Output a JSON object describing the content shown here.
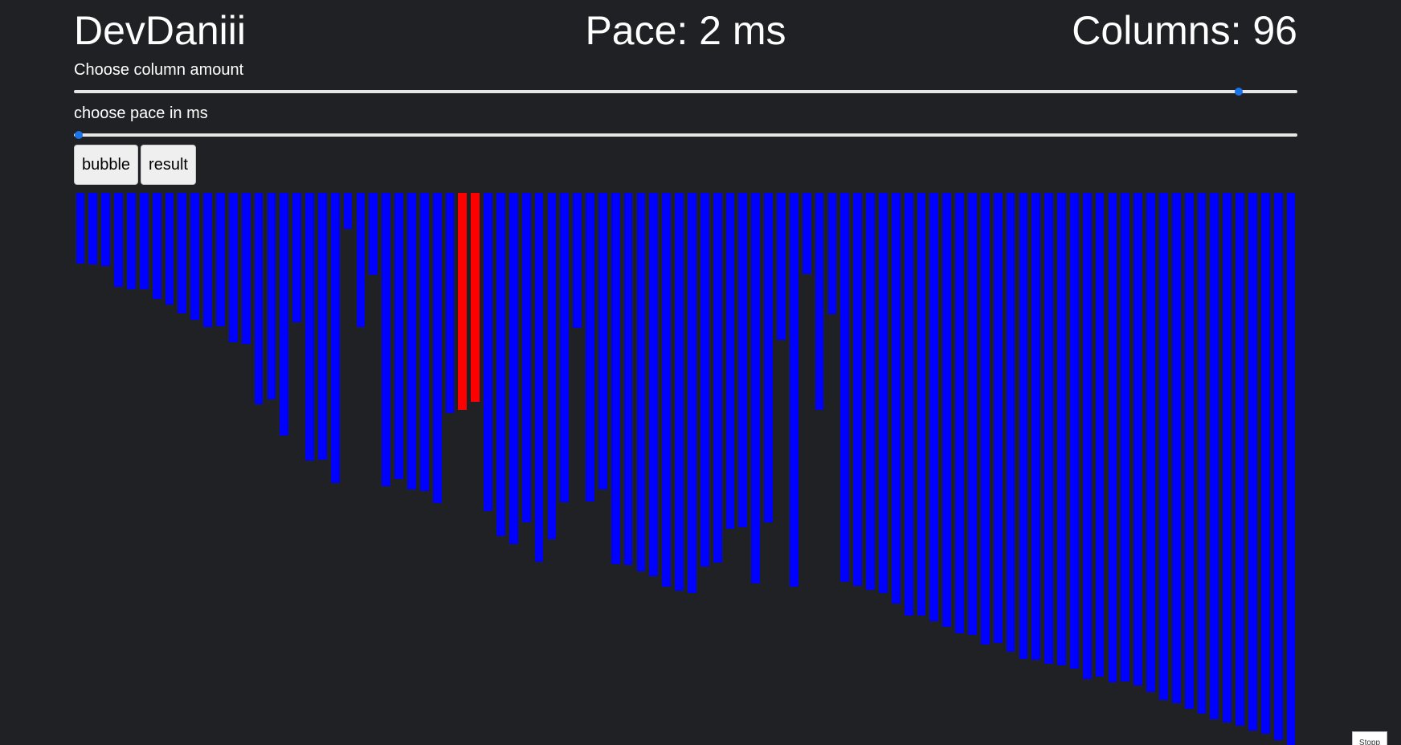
{
  "header": {
    "brand": "DevDaniii",
    "pace_text": "Pace: 2 ms",
    "columns_text": "Columns: 96"
  },
  "controls": {
    "column_label": "Choose column amount",
    "column_slider_fraction": 0.952,
    "pace_label": "choose pace in ms",
    "pace_slider_fraction": 0.004,
    "bubble_label": "bubble",
    "result_label": "result"
  },
  "corner_tab": {
    "label": "Stopp"
  },
  "colors": {
    "background": "#202124",
    "bar": "#0000ff",
    "highlight": "#ff0000",
    "slider_thumb": "#1a73e8"
  },
  "chart_data": {
    "type": "bar",
    "orientation": "bars hang from top",
    "column_count": 96,
    "highlighted_indices": [
      30,
      31
    ],
    "values": [
      100,
      101,
      104,
      133,
      137,
      137,
      150,
      158,
      171,
      180,
      190,
      189,
      212,
      214,
      300,
      293,
      344,
      184,
      380,
      378,
      412,
      51,
      190,
      116,
      416,
      406,
      421,
      423,
      440,
      312,
      308,
      296,
      451,
      487,
      498,
      467,
      523,
      491,
      439,
      191,
      438,
      420,
      526,
      528,
      537,
      544,
      559,
      564,
      568,
      530,
      524,
      476,
      474,
      554,
      467,
      209,
      559,
      115,
      308,
      172,
      552,
      557,
      563,
      568,
      582,
      600,
      600,
      608,
      616,
      625,
      627,
      641,
      638,
      651,
      661,
      662,
      668,
      670,
      675,
      690,
      686,
      694,
      693,
      699,
      708,
      719,
      724,
      732,
      739,
      746,
      751,
      756,
      763,
      767,
      776,
      783
    ],
    "y_max": 783
  }
}
